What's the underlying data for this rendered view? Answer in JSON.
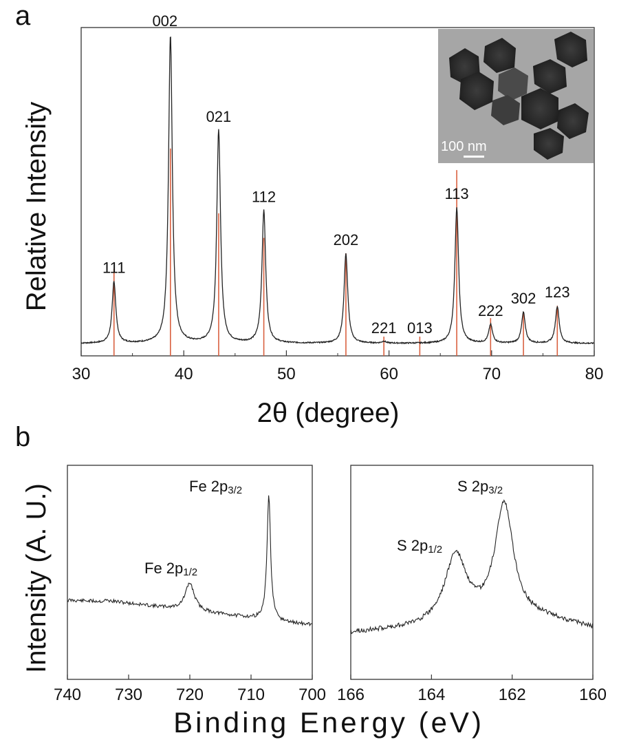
{
  "panel_a": {
    "letter": "a",
    "chart_data": {
      "type": "line",
      "xlabel": "2θ (degree)",
      "ylabel": "Relative Intensity",
      "xlim": [
        30,
        80
      ],
      "ylim": [
        0,
        1.0
      ],
      "xticks": [
        "30",
        "40",
        "50",
        "60",
        "70",
        "80"
      ],
      "xtick_values": [
        30,
        40,
        50,
        60,
        70,
        80
      ],
      "baseline": 0.035,
      "series_color": "#222222",
      "reference_color": "#d9603f",
      "peaks": [
        {
          "label": "111",
          "x": 33.2,
          "height": 0.2
        },
        {
          "label": "002",
          "x": 38.7,
          "height": 1.0
        },
        {
          "label": "021",
          "x": 43.4,
          "height": 0.69
        },
        {
          "label": "112",
          "x": 47.8,
          "height": 0.43
        },
        {
          "label": "202",
          "x": 55.8,
          "height": 0.29
        },
        {
          "label": "221",
          "x": 59.5,
          "height": 0.006
        },
        {
          "label": "013",
          "x": 63.0,
          "height": 0.0
        },
        {
          "label": "113",
          "x": 66.6,
          "height": 0.44
        },
        {
          "label": "222",
          "x": 69.9,
          "height": 0.06
        },
        {
          "label": "302",
          "x": 73.1,
          "height": 0.1
        },
        {
          "label": "123",
          "x": 76.4,
          "height": 0.12
        }
      ],
      "reference_lines": [
        {
          "x": 33.2,
          "height": 0.24
        },
        {
          "x": 38.7,
          "height": 0.63
        },
        {
          "x": 43.4,
          "height": 0.42
        },
        {
          "x": 47.8,
          "height": 0.34
        },
        {
          "x": 55.8,
          "height": 0.29
        },
        {
          "x": 59.5,
          "height": 0.02
        },
        {
          "x": 63.0,
          "height": 0.02
        },
        {
          "x": 66.6,
          "height": 0.56
        },
        {
          "x": 69.9,
          "height": 0.08
        },
        {
          "x": 73.1,
          "height": 0.1
        },
        {
          "x": 76.4,
          "height": 0.12
        }
      ]
    },
    "inset": {
      "scale_text": "100 nm"
    }
  },
  "panel_b": {
    "letter": "b",
    "ylabel": "Intensity (A. U.)",
    "xlabel": "Binding Energy (eV)",
    "fe": {
      "chart_data": {
        "type": "line",
        "xlim": [
          740,
          700
        ],
        "ylim": [
          0,
          1
        ],
        "xticks": [
          "740",
          "730",
          "720",
          "710",
          "700"
        ],
        "xtick_values": [
          740,
          730,
          720,
          710,
          700
        ],
        "annotations": [
          {
            "base": "Fe 2p",
            "sub": "1/2",
            "x": 720.0
          },
          {
            "base": "Fe 2p",
            "sub": "3/2",
            "x": 707.1
          }
        ]
      }
    },
    "s": {
      "chart_data": {
        "type": "line",
        "xlim": [
          166,
          160
        ],
        "ylim": [
          0,
          1
        ],
        "xticks": [
          "166",
          "164",
          "162",
          "160"
        ],
        "xtick_values": [
          166,
          164,
          162,
          160
        ],
        "annotations": [
          {
            "base": "S 2p",
            "sub": "1/2",
            "x": 163.4
          },
          {
            "base": "S 2p",
            "sub": "3/2",
            "x": 162.2
          }
        ]
      }
    }
  }
}
